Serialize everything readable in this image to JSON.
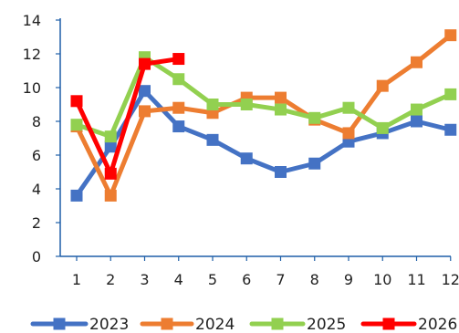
{
  "chart_data": {
    "type": "line",
    "title": "",
    "xlabel": "",
    "ylabel": "",
    "x": [
      1,
      2,
      3,
      4,
      5,
      6,
      7,
      8,
      9,
      10,
      11,
      12
    ],
    "x_tick_labels": [
      "1",
      "2",
      "3",
      "4",
      "5",
      "6",
      "7",
      "8",
      "9",
      "10",
      "11",
      "12"
    ],
    "ylim": [
      0,
      14
    ],
    "y_ticks": [
      0,
      2,
      4,
      6,
      8,
      10,
      12,
      14
    ],
    "y_tick_labels": [
      "0",
      "2",
      "4",
      "6",
      "8",
      "10",
      "12",
      "14"
    ],
    "grid": false,
    "legend_position": "bottom",
    "series": [
      {
        "name": "2023",
        "color": "#4472C4",
        "marker": "square",
        "values": [
          3.6,
          6.5,
          9.8,
          7.7,
          6.9,
          5.8,
          5.0,
          5.5,
          6.8,
          7.3,
          8.0,
          7.5
        ]
      },
      {
        "name": "2024",
        "color": "#ED7D31",
        "marker": "square",
        "values": [
          7.7,
          3.6,
          8.6,
          8.8,
          8.5,
          9.4,
          9.4,
          8.1,
          7.3,
          10.1,
          11.5,
          13.1
        ]
      },
      {
        "name": "2025",
        "color": "#92D050",
        "marker": "square",
        "values": [
          7.8,
          7.1,
          11.8,
          10.5,
          9.0,
          9.0,
          8.7,
          8.2,
          8.8,
          7.6,
          8.7,
          9.6
        ]
      },
      {
        "name": "2026",
        "color": "#FF0000",
        "marker": "square",
        "values": [
          9.2,
          4.9,
          11.4,
          11.7,
          null,
          null,
          null,
          null,
          null,
          null,
          null,
          null
        ]
      }
    ]
  }
}
